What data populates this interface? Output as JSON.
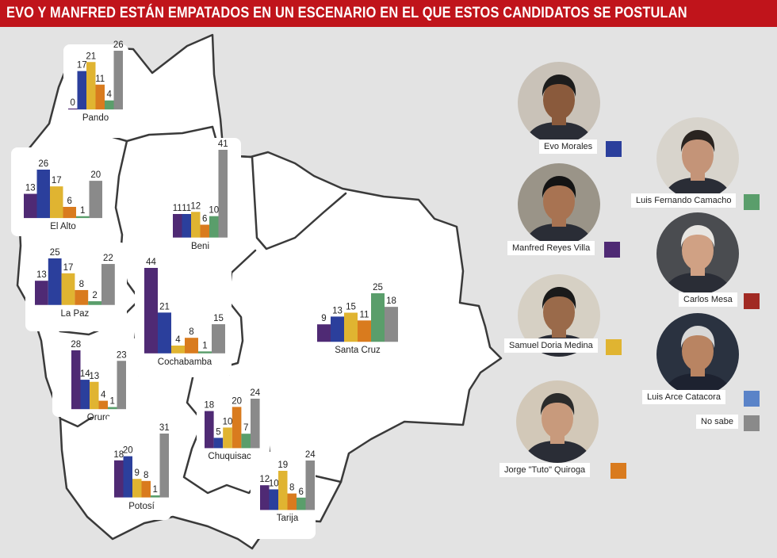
{
  "banner": {
    "title": "EVO Y MANFRED ESTÁN EMPATADOS EN UN ESCENARIO EN EL QUE ESTOS CANDIDATOS SE POSTULAN"
  },
  "colors": {
    "banner": "#c0141b",
    "background": "#e3e3e3",
    "map_fill": "#ffffff",
    "map_border": "#3a3a3a"
  },
  "legend": [
    {
      "name": "Evo Morales",
      "color": "#2b3f9c",
      "icon": "evo-morales-photo"
    },
    {
      "name": "Luis Fernando Camacho",
      "color": "#5a9e6b",
      "icon": "luis-fernando-camacho-photo"
    },
    {
      "name": "Manfred Reyes Villa",
      "color": "#4f2a74",
      "icon": "manfred-reyes-villa-photo"
    },
    {
      "name": "Carlos Mesa",
      "color": "#a12a23",
      "icon": "carlos-mesa-photo"
    },
    {
      "name": "Samuel Doria Medina",
      "color": "#e0b431",
      "icon": "samuel-doria-medina-photo"
    },
    {
      "name": "Luis Arce Catacora",
      "color": "#5a83c8",
      "icon": "luis-arce-catacora-photo"
    },
    {
      "name": "No sabe",
      "color": "#8a8a8a",
      "icon": ""
    },
    {
      "name": "Jorge \"Tuto\" Quiroga",
      "color": "#d97b1e",
      "icon": "jorge-tuto-quiroga-photo"
    }
  ],
  "chart_data": [
    {
      "type": "bar",
      "region": "Pando",
      "series": [
        {
          "name": "Manfred Reyes Villa",
          "value": 0
        },
        {
          "name": "Evo Morales",
          "value": 17
        },
        {
          "name": "Samuel Doria Medina",
          "value": 21
        },
        {
          "name": "Jorge \"Tuto\" Quiroga",
          "value": 11
        },
        {
          "name": "Luis Fernando Camacho",
          "value": 4
        },
        {
          "name": "No sabe",
          "value": 26
        }
      ]
    },
    {
      "type": "bar",
      "region": "El Alto",
      "series": [
        {
          "name": "Manfred Reyes Villa",
          "value": 13
        },
        {
          "name": "Evo Morales",
          "value": 26
        },
        {
          "name": "Samuel Doria Medina",
          "value": 17
        },
        {
          "name": "Jorge \"Tuto\" Quiroga",
          "value": 6
        },
        {
          "name": "Luis Fernando Camacho",
          "value": 1
        },
        {
          "name": "No sabe",
          "value": 20
        }
      ]
    },
    {
      "type": "bar",
      "region": "La Paz",
      "series": [
        {
          "name": "Manfred Reyes Villa",
          "value": 13
        },
        {
          "name": "Evo Morales",
          "value": 25
        },
        {
          "name": "Samuel Doria Medina",
          "value": 17
        },
        {
          "name": "Jorge \"Tuto\" Quiroga",
          "value": 8
        },
        {
          "name": "Luis Fernando Camacho",
          "value": 2
        },
        {
          "name": "No sabe",
          "value": 22
        }
      ]
    },
    {
      "type": "bar",
      "region": "Oruro",
      "series": [
        {
          "name": "Manfred Reyes Villa",
          "value": 28
        },
        {
          "name": "Evo Morales",
          "value": 14
        },
        {
          "name": "Samuel Doria Medina",
          "value": 13
        },
        {
          "name": "Jorge \"Tuto\" Quiroga",
          "value": 4
        },
        {
          "name": "Luis Fernando Camacho",
          "value": 1
        },
        {
          "name": "No sabe",
          "value": 23
        }
      ]
    },
    {
      "type": "bar",
      "region": "Beni",
      "series": [
        {
          "name": "Manfred Reyes Villa",
          "value": 11
        },
        {
          "name": "Evo Morales",
          "value": 11
        },
        {
          "name": "Samuel Doria Medina",
          "value": 12
        },
        {
          "name": "Jorge \"Tuto\" Quiroga",
          "value": 6
        },
        {
          "name": "Luis Fernando Camacho",
          "value": 10
        },
        {
          "name": "No sabe",
          "value": 41
        }
      ]
    },
    {
      "type": "bar",
      "region": "Cochabamba",
      "series": [
        {
          "name": "Manfred Reyes Villa",
          "value": 44
        },
        {
          "name": "Evo Morales",
          "value": 21
        },
        {
          "name": "Samuel Doria Medina",
          "value": 4
        },
        {
          "name": "Jorge \"Tuto\" Quiroga",
          "value": 8
        },
        {
          "name": "Luis Fernando Camacho",
          "value": 1
        },
        {
          "name": "No sabe",
          "value": 15
        }
      ]
    },
    {
      "type": "bar",
      "region": "Santa Cruz",
      "series": [
        {
          "name": "Manfred Reyes Villa",
          "value": 9
        },
        {
          "name": "Evo Morales",
          "value": 13
        },
        {
          "name": "Samuel Doria Medina",
          "value": 15
        },
        {
          "name": "Jorge \"Tuto\" Quiroga",
          "value": 11
        },
        {
          "name": "Luis Fernando Camacho",
          "value": 25
        },
        {
          "name": "No sabe",
          "value": 18
        }
      ]
    },
    {
      "type": "bar",
      "region": "Chuquisaca",
      "series": [
        {
          "name": "Manfred Reyes Villa",
          "value": 18
        },
        {
          "name": "Evo Morales",
          "value": 5
        },
        {
          "name": "Samuel Doria Medina",
          "value": 10
        },
        {
          "name": "Jorge \"Tuto\" Quiroga",
          "value": 20
        },
        {
          "name": "Luis Fernando Camacho",
          "value": 7
        },
        {
          "name": "No sabe",
          "value": 24
        }
      ]
    },
    {
      "type": "bar",
      "region": "Potosí",
      "series": [
        {
          "name": "Manfred Reyes Villa",
          "value": 18
        },
        {
          "name": "Evo Morales",
          "value": 20
        },
        {
          "name": "Samuel Doria Medina",
          "value": 9
        },
        {
          "name": "Jorge \"Tuto\" Quiroga",
          "value": 8
        },
        {
          "name": "Luis Fernando Camacho",
          "value": 1
        },
        {
          "name": "No sabe",
          "value": 31
        }
      ]
    },
    {
      "type": "bar",
      "region": "Tarija",
      "series": [
        {
          "name": "Manfred Reyes Villa",
          "value": 12
        },
        {
          "name": "Evo Morales",
          "value": 10
        },
        {
          "name": "Samuel Doria Medina",
          "value": 19
        },
        {
          "name": "Jorge \"Tuto\" Quiroga",
          "value": 8
        },
        {
          "name": "Luis Fernando Camacho",
          "value": 6
        },
        {
          "name": "No sabe",
          "value": 24
        }
      ]
    }
  ]
}
